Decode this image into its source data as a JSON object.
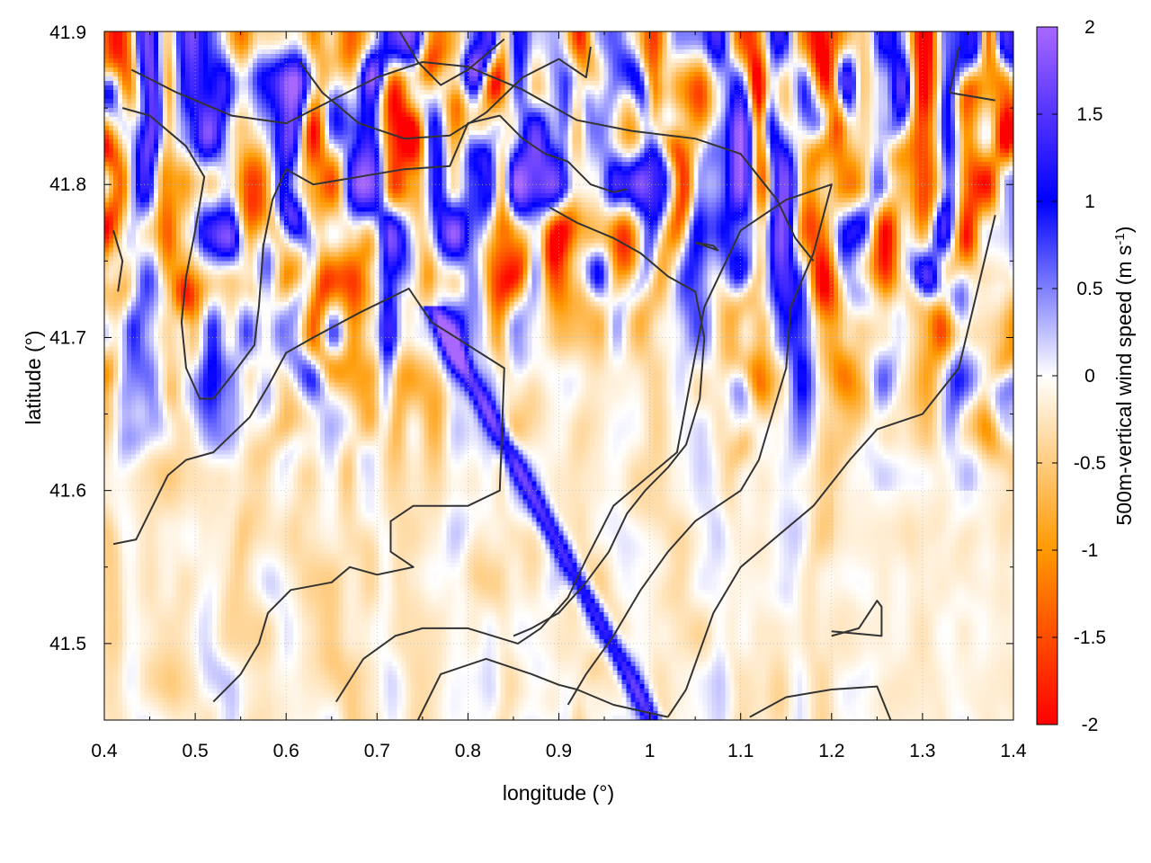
{
  "chart_data": {
    "type": "heatmap",
    "title": "",
    "xlabel": "longitude (°)",
    "ylabel": "latitude (°)",
    "colorbar_label": "500m-vertical wind speed (m s",
    "colorbar_label_sup": "-1",
    "colorbar_label_close": ")",
    "xlim": [
      0.4,
      1.4
    ],
    "ylim": [
      41.45,
      41.9
    ],
    "zlim": [
      -2,
      2
    ],
    "x_ticks": [
      "0.4",
      "0.5",
      "0.6",
      "0.7",
      "0.8",
      "0.9",
      "1",
      "1.1",
      "1.2",
      "1.3",
      "1.4"
    ],
    "y_ticks": [
      "41.5",
      "41.6",
      "41.7",
      "41.8",
      "41.9"
    ],
    "z_ticks": [
      "-2",
      "-1.5",
      "-1",
      "-0.5",
      "0",
      "0.5",
      "1",
      "1.5",
      "2"
    ],
    "grid": true,
    "palette": [
      "#ff0000",
      "#ff9900",
      "#ffffff",
      "#0000ff",
      "#a868ff"
    ],
    "contour_color": "#333333",
    "contours": [
      [
        [
          0.41,
          41.565
        ],
        [
          0.435,
          41.568
        ],
        [
          0.47,
          41.61
        ],
        [
          0.49,
          41.62
        ],
        [
          0.52,
          41.625
        ],
        [
          0.56,
          41.648
        ],
        [
          0.58,
          41.668
        ],
        [
          0.6,
          41.69
        ],
        [
          0.63,
          41.7
        ],
        [
          0.68,
          41.716
        ],
        [
          0.735,
          41.732
        ],
        [
          0.76,
          41.71
        ],
        [
          0.84,
          41.68
        ],
        [
          0.835,
          41.6
        ],
        [
          0.8,
          41.59
        ],
        [
          0.74,
          41.59
        ],
        [
          0.715,
          41.58
        ],
        [
          0.715,
          41.56
        ],
        [
          0.74,
          41.55
        ],
        [
          0.7,
          41.545
        ],
        [
          0.67,
          41.55
        ],
        [
          0.65,
          41.54
        ],
        [
          0.605,
          41.535
        ],
        [
          0.58,
          41.52
        ],
        [
          0.57,
          41.5
        ],
        [
          0.55,
          41.48
        ],
        [
          0.52,
          41.462
        ]
      ],
      [
        [
          0.655,
          41.462
        ],
        [
          0.685,
          41.49
        ],
        [
          0.72,
          41.505
        ],
        [
          0.75,
          41.51
        ],
        [
          0.8,
          41.51
        ],
        [
          0.855,
          41.5
        ],
        [
          0.88,
          41.51
        ],
        [
          0.91,
          41.53
        ],
        [
          0.93,
          41.555
        ],
        [
          0.96,
          41.59
        ],
        [
          1.0,
          41.61
        ],
        [
          1.03,
          41.625
        ],
        [
          1.06,
          41.72
        ],
        [
          1.1,
          41.77
        ],
        [
          1.15,
          41.79
        ],
        [
          1.2,
          41.8
        ],
        [
          1.18,
          41.755
        ],
        [
          1.155,
          41.72
        ],
        [
          1.15,
          41.68
        ],
        [
          1.14,
          41.66
        ],
        [
          1.12,
          41.62
        ],
        [
          1.1,
          41.6
        ],
        [
          1.05,
          41.58
        ],
        [
          1.02,
          41.56
        ],
        [
          0.99,
          41.535
        ],
        [
          0.96,
          41.505
        ],
        [
          0.93,
          41.48
        ],
        [
          0.91,
          41.46
        ]
      ],
      [
        [
          0.745,
          41.45
        ],
        [
          0.77,
          41.48
        ],
        [
          0.82,
          41.49
        ],
        [
          0.87,
          41.48
        ],
        [
          0.9,
          41.473
        ],
        [
          0.92,
          41.47
        ],
        [
          0.96,
          41.46
        ],
        [
          1.02,
          41.452
        ]
      ],
      [
        [
          1.02,
          41.452
        ],
        [
          1.04,
          41.47
        ],
        [
          1.07,
          41.52
        ],
        [
          1.1,
          41.55
        ],
        [
          1.14,
          41.57
        ],
        [
          1.18,
          41.59
        ],
        [
          1.22,
          41.62
        ],
        [
          1.25,
          41.64
        ],
        [
          1.3,
          41.65
        ],
        [
          1.34,
          41.68
        ],
        [
          1.36,
          41.73
        ],
        [
          1.38,
          41.78
        ]
      ],
      [
        [
          1.2,
          41.505
        ],
        [
          1.23,
          41.51
        ],
        [
          1.25,
          41.528
        ],
        [
          1.255,
          41.524
        ],
        [
          1.255,
          41.505
        ],
        [
          1.2,
          41.508
        ]
      ],
      [
        [
          1.11,
          41.452
        ],
        [
          1.15,
          41.465
        ],
        [
          1.2,
          41.47
        ],
        [
          1.25,
          41.472
        ],
        [
          1.265,
          41.45
        ]
      ],
      [
        [
          0.43,
          41.875
        ],
        [
          0.48,
          41.86
        ],
        [
          0.54,
          41.845
        ],
        [
          0.6,
          41.84
        ],
        [
          0.65,
          41.855
        ],
        [
          0.7,
          41.87
        ],
        [
          0.75,
          41.88
        ],
        [
          0.8,
          41.877
        ],
        [
          0.86,
          41.862
        ],
        [
          0.92,
          41.842
        ],
        [
          0.98,
          41.835
        ],
        [
          1.05,
          41.83
        ],
        [
          1.1,
          41.82
        ],
        [
          1.14,
          41.79
        ],
        [
          1.16,
          41.765
        ],
        [
          1.18,
          41.75
        ]
      ],
      [
        [
          0.42,
          41.85
        ],
        [
          0.45,
          41.845
        ],
        [
          0.49,
          41.825
        ],
        [
          0.51,
          41.805
        ],
        [
          0.5,
          41.77
        ],
        [
          0.49,
          41.74
        ],
        [
          0.485,
          41.71
        ],
        [
          0.49,
          41.68
        ],
        [
          0.505,
          41.66
        ],
        [
          0.52,
          41.66
        ],
        [
          0.54,
          41.675
        ],
        [
          0.565,
          41.695
        ],
        [
          0.57,
          41.72
        ],
        [
          0.575,
          41.76
        ],
        [
          0.585,
          41.79
        ],
        [
          0.6,
          41.81
        ],
        [
          0.63,
          41.8
        ],
        [
          0.68,
          41.805
        ],
        [
          0.73,
          41.81
        ],
        [
          0.78,
          41.812
        ],
        [
          0.8,
          41.84
        ],
        [
          0.835,
          41.845
        ],
        [
          0.86,
          41.83
        ],
        [
          0.885,
          41.82
        ],
        [
          0.91,
          41.815
        ],
        [
          0.935,
          41.8
        ],
        [
          0.96,
          41.795
        ],
        [
          0.975,
          41.797
        ]
      ],
      [
        [
          0.89,
          41.785
        ],
        [
          0.92,
          41.775
        ],
        [
          0.96,
          41.765
        ],
        [
          0.99,
          41.755
        ],
        [
          1.02,
          41.74
        ],
        [
          1.05,
          41.73
        ],
        [
          1.06,
          41.7
        ],
        [
          1.055,
          41.66
        ],
        [
          1.04,
          41.63
        ],
        [
          1.02,
          41.615
        ],
        [
          0.995,
          41.6
        ],
        [
          0.975,
          41.585
        ],
        [
          0.955,
          41.56
        ],
        [
          0.93,
          41.54
        ],
        [
          0.9,
          41.52
        ],
        [
          0.87,
          41.51
        ],
        [
          0.85,
          41.505
        ]
      ],
      [
        [
          1.05,
          41.762
        ],
        [
          1.07,
          41.76
        ],
        [
          1.075,
          41.757
        ],
        [
          1.05,
          41.762
        ]
      ],
      [
        [
          0.615,
          41.88
        ],
        [
          0.64,
          41.86
        ],
        [
          0.68,
          41.84
        ],
        [
          0.73,
          41.83
        ],
        [
          0.78,
          41.832
        ],
        [
          0.82,
          41.847
        ],
        [
          0.86,
          41.87
        ],
        [
          0.9,
          41.882
        ],
        [
          0.93,
          41.87
        ],
        [
          0.935,
          41.89
        ]
      ],
      [
        [
          0.725,
          41.9
        ],
        [
          0.745,
          41.88
        ],
        [
          0.77,
          41.865
        ],
        [
          0.8,
          41.875
        ],
        [
          0.84,
          41.895
        ]
      ],
      [
        [
          1.34,
          41.89
        ],
        [
          1.33,
          41.86
        ],
        [
          1.38,
          41.855
        ]
      ],
      [
        [
          0.41,
          41.77
        ],
        [
          0.42,
          41.75
        ],
        [
          0.415,
          41.73
        ]
      ]
    ]
  }
}
